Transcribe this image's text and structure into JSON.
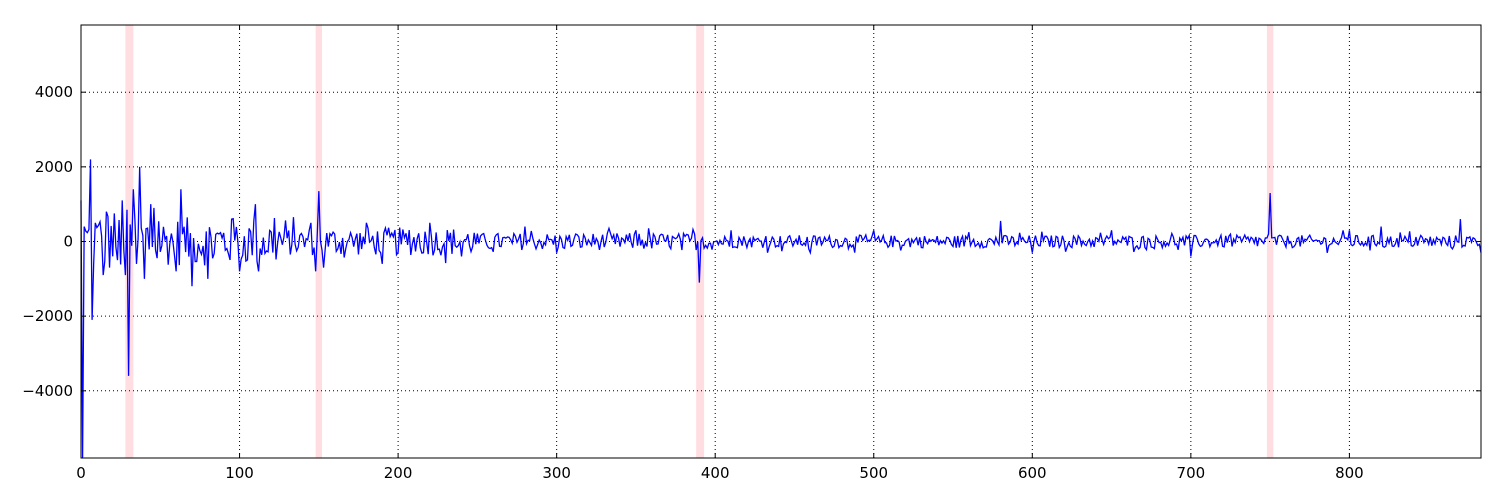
{
  "chart_data": {
    "type": "line",
    "title": "",
    "xlabel": "",
    "ylabel": "",
    "xlim": [
      0,
      883
    ],
    "ylim": [
      -5800,
      5800
    ],
    "grid": true,
    "legend": "none",
    "xticks": [
      0,
      100,
      200,
      300,
      400,
      500,
      600,
      700,
      800
    ],
    "yticks": [
      4000,
      2000,
      0,
      -2000,
      -4000
    ],
    "xtick_labels": [
      "0",
      "100",
      "200",
      "300",
      "400",
      "500",
      "600",
      "700",
      "800"
    ],
    "ytick_labels": [
      "4000",
      "2000",
      "0",
      "−2000",
      "−4000"
    ],
    "highlight_bands": [
      {
        "x0": 28,
        "x1": 33
      },
      {
        "x0": 148,
        "x1": 152
      },
      {
        "x0": 388,
        "x1": 393
      },
      {
        "x0": 748,
        "x1": 752
      }
    ],
    "series": [
      {
        "color": "#0000ff",
        "key_points": [
          [
            0,
            1100
          ],
          [
            1,
            -5800
          ],
          [
            2,
            400
          ],
          [
            6,
            2200
          ],
          [
            7,
            -2100
          ],
          [
            9,
            500
          ],
          [
            14,
            -900
          ],
          [
            16,
            800
          ],
          [
            23,
            -500
          ],
          [
            26,
            1100
          ],
          [
            28,
            -900
          ],
          [
            30,
            -3600
          ],
          [
            33,
            1400
          ],
          [
            35,
            -600
          ],
          [
            37,
            2000
          ],
          [
            40,
            -1000
          ],
          [
            44,
            1000
          ],
          [
            46,
            900
          ],
          [
            60,
            -800
          ],
          [
            63,
            1400
          ],
          [
            70,
            -1200
          ],
          [
            80,
            -1000
          ],
          [
            95,
            600
          ],
          [
            100,
            -800
          ],
          [
            110,
            1000
          ],
          [
            112,
            -800
          ],
          [
            145,
            500
          ],
          [
            148,
            -800
          ],
          [
            150,
            1350
          ],
          [
            153,
            -700
          ],
          [
            180,
            500
          ],
          [
            190,
            -600
          ],
          [
            220,
            500
          ],
          [
            240,
            -400
          ],
          [
            280,
            400
          ],
          [
            300,
            -300
          ],
          [
            350,
            300
          ],
          [
            387,
            200
          ],
          [
            390,
            -1100
          ],
          [
            392,
            100
          ],
          [
            410,
            300
          ],
          [
            460,
            -300
          ],
          [
            500,
            300
          ],
          [
            560,
            250
          ],
          [
            580,
            550
          ],
          [
            600,
            -300
          ],
          [
            650,
            300
          ],
          [
            700,
            -400
          ],
          [
            749,
            200
          ],
          [
            750,
            1300
          ],
          [
            752,
            100
          ],
          [
            800,
            300
          ],
          [
            820,
            400
          ],
          [
            865,
            -200
          ],
          [
            870,
            600
          ],
          [
            883,
            -300
          ]
        ]
      }
    ]
  }
}
